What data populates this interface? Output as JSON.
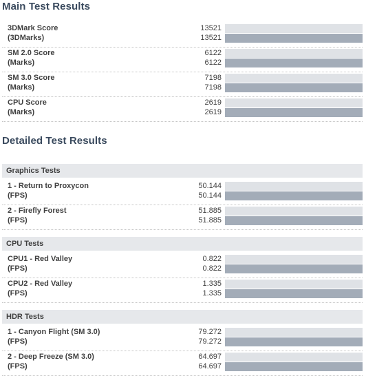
{
  "main": {
    "title": "Main Test Results",
    "rows": [
      {
        "name": "3DMark Score",
        "unit": "(3DMarks)",
        "value": "13521",
        "display": "13521",
        "bar_fraction": 1.0
      },
      {
        "name": "SM 2.0 Score",
        "unit": "(Marks)",
        "value": "6122",
        "display": "6122",
        "bar_fraction": 1.0
      },
      {
        "name": "SM 3.0 Score",
        "unit": "(Marks)",
        "value": "7198",
        "display": "7198",
        "bar_fraction": 1.0
      },
      {
        "name": "CPU Score",
        "unit": "(Marks)",
        "value": "2619",
        "display": "2619",
        "bar_fraction": 1.0
      }
    ]
  },
  "detailed": {
    "title": "Detailed Test Results",
    "groups": [
      {
        "name": "Graphics Tests",
        "rows": [
          {
            "name": "1 - Return to Proxycon",
            "unit": "(FPS)",
            "value": "50.144",
            "display": "50.144",
            "bar_fraction": 1.0
          },
          {
            "name": "2 - Firefly Forest",
            "unit": "(FPS)",
            "value": "51.885",
            "display": "51.885",
            "bar_fraction": 1.0
          }
        ]
      },
      {
        "name": "CPU Tests",
        "rows": [
          {
            "name": "CPU1 - Red Valley",
            "unit": "(FPS)",
            "value": "0.822",
            "display": "0.822",
            "bar_fraction": 1.0
          },
          {
            "name": "CPU2 - Red Valley",
            "unit": "(FPS)",
            "value": "1.335",
            "display": "1.335",
            "bar_fraction": 1.0
          }
        ]
      },
      {
        "name": "HDR Tests",
        "rows": [
          {
            "name": "1 - Canyon Flight (SM 3.0)",
            "unit": "(FPS)",
            "value": "79.272",
            "display": "79.272",
            "bar_fraction": 1.0
          },
          {
            "name": "2 - Deep Freeze (SM 3.0)",
            "unit": "(FPS)",
            "value": "64.697",
            "display": "64.697",
            "bar_fraction": 1.0
          }
        ]
      }
    ]
  },
  "colors": {
    "heading": "#3a4a5e",
    "group_header_bg": "#e6e8eb",
    "bar_track": "#dfe2e6",
    "bar_fill": "#a3acb8"
  }
}
